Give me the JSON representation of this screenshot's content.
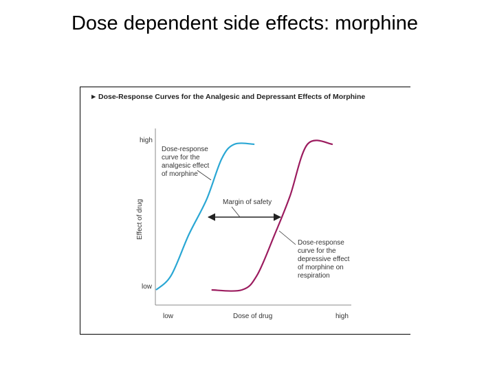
{
  "slide": {
    "title": "Dose dependent side effects: morphine"
  },
  "chart_data": {
    "type": "line",
    "title": "Dose-Response Curves for the Analgesic and Depressant Effects of Morphine",
    "title_marker": "►",
    "xlabel": "Dose of drug",
    "ylabel": "Effect of drug",
    "x_tick_labels": [
      "low",
      "high"
    ],
    "y_tick_labels": [
      "low",
      "high"
    ],
    "xlim": [
      0,
      1
    ],
    "ylim": [
      0,
      1
    ],
    "grid": false,
    "series": [
      {
        "key": "analgesic",
        "color": "#2aa7d4",
        "x": [
          0.0,
          0.06,
          0.13,
          0.2,
          0.26,
          0.31,
          0.39
        ],
        "y": [
          0.0,
          0.1,
          0.38,
          0.62,
          0.9,
          1.0,
          1.0
        ]
      },
      {
        "key": "respiratory",
        "color": "#9b1b5e",
        "x": [
          0.22,
          0.34,
          0.4,
          0.47,
          0.53,
          0.6,
          0.7
        ],
        "y": [
          0.0,
          0.0,
          0.1,
          0.38,
          0.64,
          1.0,
          1.0
        ]
      }
    ],
    "annotations": [
      {
        "key": "analgesic-label",
        "lines": [
          "Dose-response",
          "curve for the",
          "analgesic effect",
          "of morphine"
        ]
      },
      {
        "key": "margin-label",
        "lines": [
          "Margin of safety"
        ]
      },
      {
        "key": "respiratory-label",
        "lines": [
          "Dose-response",
          "curve for the",
          "depressive effect",
          "of morphine on",
          "respiration"
        ]
      }
    ]
  }
}
